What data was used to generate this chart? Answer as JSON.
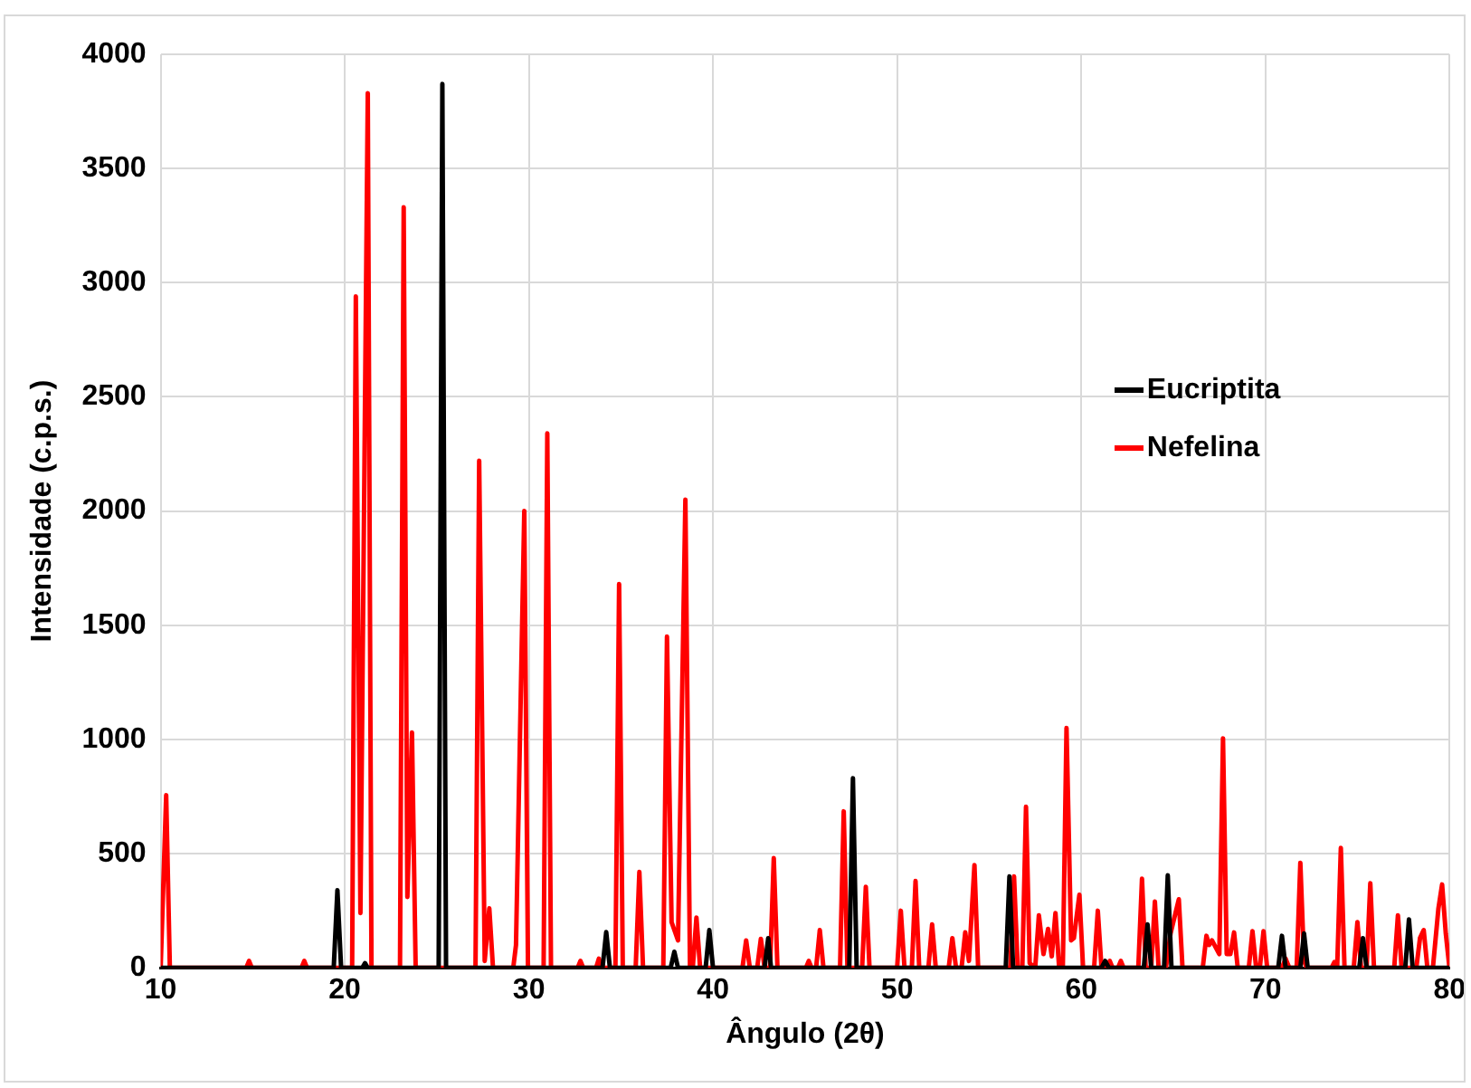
{
  "chart_data": {
    "type": "line",
    "xlabel": "Ângulo (2θ)",
    "ylabel": "Intensidade (c.p.s.)",
    "xlim": [
      10,
      80
    ],
    "xticks": [
      10,
      20,
      30,
      40,
      50,
      60,
      70,
      80
    ],
    "ylim": [
      0,
      4000
    ],
    "yticks": [
      0,
      500,
      1000,
      1500,
      2000,
      2500,
      3000,
      3500,
      4000
    ],
    "grid": true,
    "legend": "right",
    "marker": "none",
    "line_style": "solid",
    "series": [
      {
        "name": "Eucriptita",
        "color": "#000000",
        "x": [
          10,
          19.4,
          19.6,
          19.8,
          20.95,
          21.1,
          21.25,
          25.1,
          25.3,
          25.5,
          34.0,
          34.2,
          34.4,
          37.7,
          37.9,
          38.1,
          39.6,
          39.8,
          40.0,
          42.8,
          43.0,
          43.15,
          47.4,
          47.6,
          47.8,
          55.9,
          56.1,
          56.3,
          61.1,
          61.3,
          61.5,
          63.4,
          63.6,
          63.8,
          64.5,
          64.7,
          64.9,
          70.7,
          70.9,
          71.1,
          71.9,
          72.1,
          72.3,
          75.1,
          75.3,
          75.5,
          77.6,
          77.8,
          78.0,
          80
        ],
        "values": [
          0,
          0,
          340,
          0,
          0,
          20,
          0,
          0,
          3870,
          0,
          0,
          156,
          0,
          0,
          70,
          0,
          0,
          165,
          0,
          0,
          130,
          0,
          0,
          830,
          0,
          0,
          400,
          0,
          0,
          30,
          0,
          0,
          190,
          0,
          0,
          405,
          0,
          0,
          140,
          0,
          0,
          150,
          0,
          0,
          130,
          0,
          0,
          212,
          0,
          0
        ]
      },
      {
        "name": "Nefelina",
        "color": "#ff0000",
        "x": [
          10,
          10.3,
          10.5,
          14.65,
          14.8,
          14.95,
          17.65,
          17.8,
          17.95,
          20.4,
          20.6,
          20.85,
          21.25,
          21.45,
          23.0,
          23.2,
          23.4,
          23.65,
          23.85,
          27.1,
          27.3,
          27.6,
          27.85,
          28.05,
          29.15,
          29.3,
          29.75,
          29.95,
          30.8,
          31.0,
          31.2,
          32.65,
          32.8,
          32.95,
          33.65,
          33.8,
          33.95,
          34.7,
          34.9,
          35.1,
          35.8,
          36.0,
          36.2,
          37.3,
          37.5,
          37.75,
          38.1,
          38.5,
          38.75,
          38.9,
          39.1,
          39.3,
          41.6,
          41.8,
          42.0,
          42.4,
          42.6,
          42.8,
          43.1,
          43.3,
          43.5,
          45.05,
          45.2,
          45.35,
          45.6,
          45.8,
          46.0,
          46.9,
          47.1,
          47.3,
          48.1,
          48.3,
          48.5,
          50.0,
          50.2,
          50.4,
          50.8,
          51.0,
          51.2,
          51.7,
          51.9,
          52.1,
          52.8,
          53.0,
          53.2,
          53.5,
          53.7,
          53.9,
          54.2,
          54.4,
          56.15,
          56.35,
          56.55,
          56.8,
          57.0,
          57.2,
          57.5,
          57.7,
          57.95,
          58.2,
          58.4,
          58.6,
          58.8,
          59.0,
          59.2,
          59.45,
          59.6,
          59.9,
          60.1,
          60.7,
          60.9,
          61.1,
          61.4,
          61.55,
          61.7,
          62.0,
          62.15,
          62.3,
          63.1,
          63.3,
          63.5,
          63.8,
          64.0,
          64.2,
          64.6,
          64.85,
          65.3,
          65.5,
          66.6,
          66.8,
          66.95,
          67.1,
          67.5,
          67.7,
          67.9,
          68.1,
          68.3,
          68.5,
          69.1,
          69.3,
          69.5,
          69.7,
          69.9,
          70.1,
          70.9,
          71.1,
          71.3,
          71.7,
          71.9,
          72.1,
          72.25,
          73.6,
          73.75,
          73.9,
          74.1,
          74.3,
          74.8,
          75.0,
          75.2,
          75.5,
          75.7,
          75.9,
          77.0,
          77.2,
          77.4,
          78.2,
          78.4,
          78.6,
          78.8,
          79.1,
          79.4,
          79.6,
          79.8,
          80
        ],
        "values": [
          0,
          756,
          0,
          0,
          30,
          0,
          0,
          30,
          0,
          0,
          2940,
          240,
          3830,
          0,
          0,
          3330,
          310,
          1030,
          0,
          0,
          2220,
          30,
          260,
          0,
          0,
          100,
          2000,
          0,
          0,
          2340,
          0,
          0,
          30,
          0,
          0,
          40,
          0,
          0,
          1680,
          0,
          0,
          420,
          0,
          0,
          1450,
          200,
          120,
          2050,
          0,
          0,
          220,
          0,
          0,
          120,
          0,
          0,
          127,
          0,
          0,
          480,
          0,
          0,
          30,
          0,
          0,
          165,
          0,
          0,
          685,
          0,
          0,
          355,
          0,
          0,
          250,
          0,
          0,
          380,
          0,
          0,
          190,
          0,
          0,
          130,
          0,
          0,
          155,
          30,
          450,
          0,
          0,
          400,
          0,
          0,
          705,
          20,
          0,
          230,
          60,
          170,
          50,
          240,
          0,
          0,
          1050,
          120,
          130,
          320,
          0,
          0,
          250,
          0,
          0,
          30,
          0,
          0,
          30,
          0,
          0,
          390,
          0,
          0,
          290,
          0,
          0,
          150,
          300,
          0,
          0,
          140,
          100,
          120,
          60,
          1005,
          60,
          60,
          155,
          0,
          0,
          160,
          0,
          0,
          160,
          0,
          0,
          40,
          0,
          0,
          460,
          30,
          0,
          0,
          25,
          0,
          525,
          0,
          0,
          200,
          0,
          0,
          370,
          0,
          0,
          230,
          0,
          0,
          130,
          165,
          0,
          0,
          260,
          365,
          150,
          0
        ]
      }
    ]
  }
}
